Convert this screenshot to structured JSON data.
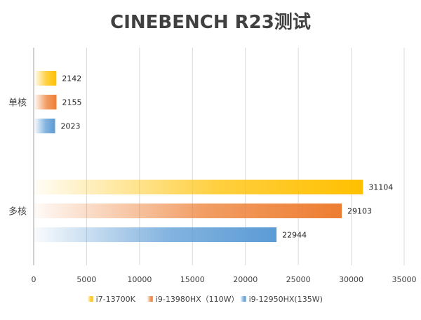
{
  "colors": {
    "i7": "#ffc000",
    "i9_13980hx": "#ed7d31",
    "i9_12950hx": "#5b9bd5",
    "grid": "#d9d9d9",
    "text": "#404040"
  },
  "chart_data": {
    "type": "bar",
    "orientation": "horizontal",
    "title": "CINEBENCH R23测试",
    "categories": [
      "单核",
      "多核"
    ],
    "series": [
      {
        "name": "i7-13700K",
        "values": [
          2142,
          31104
        ],
        "color": "#ffc000"
      },
      {
        "name": "i9-13980HX（110W）",
        "values": [
          2155,
          29103
        ],
        "color": "#ed7d31"
      },
      {
        "name": "i9-12950HX(135W)",
        "values": [
          2023,
          22944
        ],
        "color": "#5b9bd5"
      }
    ],
    "xlim": [
      0,
      35000
    ],
    "xticks": [
      "0",
      "5000",
      "10000",
      "15000",
      "20000",
      "25000",
      "30000",
      "35000"
    ],
    "data_labels": [
      [
        "2142",
        "2155",
        "2023"
      ],
      [
        "31104",
        "29103",
        "22944"
      ]
    ],
    "grid": true,
    "legend_position": "bottom"
  }
}
